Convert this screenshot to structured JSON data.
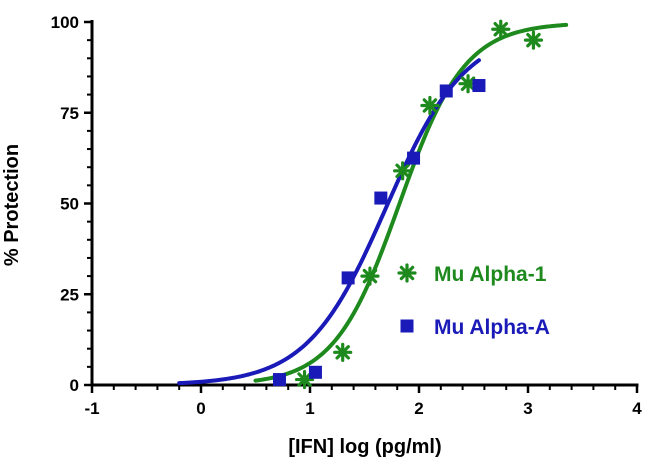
{
  "chart_data": {
    "type": "scatter",
    "xlabel": "[IFN] log (pg/ml)",
    "ylabel": "% Protection",
    "xlim": [
      -1,
      4
    ],
    "ylim": [
      0,
      100
    ],
    "x_ticks": [
      -1,
      0,
      1,
      2,
      3,
      4
    ],
    "y_ticks": [
      0,
      25,
      50,
      75,
      100
    ],
    "grid": false,
    "legend_position": "center-right",
    "series": [
      {
        "name": "Mu Alpha-1",
        "color": "#1e8a1e",
        "marker": "asterisk",
        "points": [
          {
            "x": 0.95,
            "y": 1.5
          },
          {
            "x": 1.3,
            "y": 9
          },
          {
            "x": 1.55,
            "y": 30
          },
          {
            "x": 1.85,
            "y": 59
          },
          {
            "x": 2.1,
            "y": 77
          },
          {
            "x": 2.45,
            "y": 83
          },
          {
            "x": 2.75,
            "y": 98
          },
          {
            "x": 3.05,
            "y": 95
          }
        ],
        "fit": {
          "bottom": 0,
          "top": 99.8,
          "log_ec50": 1.82,
          "hill": 1.45,
          "x_range": [
            0.5,
            3.35
          ]
        }
      },
      {
        "name": "Mu Alpha-A",
        "color": "#1a1ab8",
        "marker": "square",
        "points": [
          {
            "x": 0.72,
            "y": 1.5
          },
          {
            "x": 1.05,
            "y": 3.5
          },
          {
            "x": 1.35,
            "y": 29.5
          },
          {
            "x": 1.65,
            "y": 51.5
          },
          {
            "x": 1.95,
            "y": 62.5
          },
          {
            "x": 2.25,
            "y": 81
          },
          {
            "x": 2.55,
            "y": 82.5
          }
        ],
        "fit": {
          "bottom": 0,
          "top": 98,
          "log_ec50": 1.7,
          "hill": 1.2,
          "x_range": [
            -0.2,
            2.55
          ]
        }
      }
    ]
  }
}
